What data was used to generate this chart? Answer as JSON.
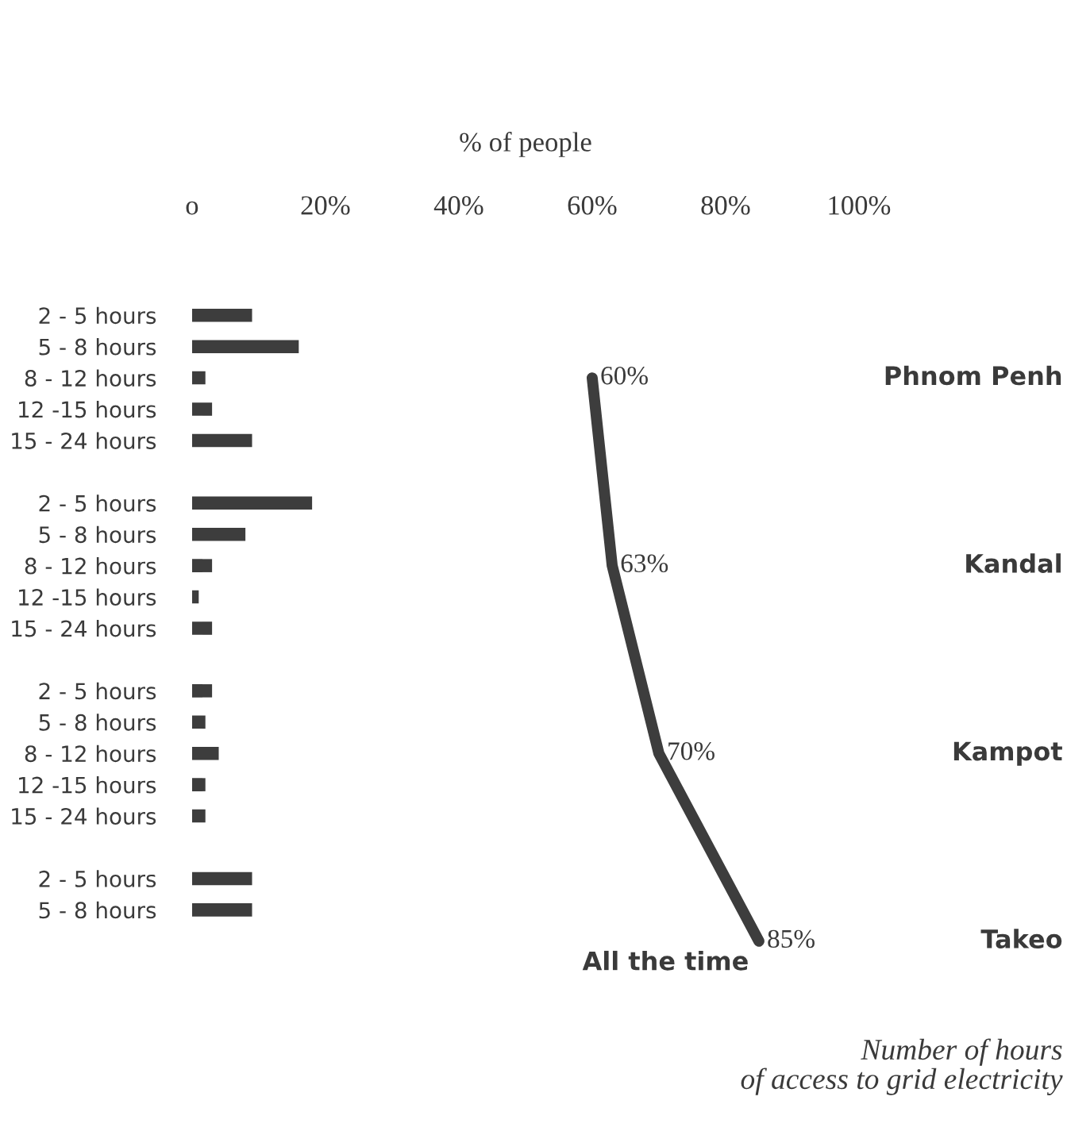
{
  "chart_data": {
    "type": "bar",
    "orientation": "horizontal",
    "xlabel": "% of people",
    "categories": [
      "2 - 5 hours",
      "5 - 8 hours",
      "8 - 12 hours",
      "12 -15 hours",
      "15 - 24 hours",
      null,
      "2 - 5 hours",
      "5 - 8 hours",
      "8 - 12 hours",
      "12 -15 hours",
      "15 - 24 hours",
      null,
      "2 - 5 hours",
      "5 - 8 hours",
      "8 - 12 hours",
      "12 -15 hours",
      "15 - 24 hours",
      null,
      "2 - 5 hours",
      "5 - 8 hours",
      null
    ],
    "series": [
      {
        "color": "#3d3d3d",
        "values": [
          9,
          16,
          2,
          3,
          9,
          null,
          18,
          8,
          3,
          1,
          3,
          null,
          3,
          2,
          4,
          2,
          2,
          null,
          9,
          9,
          null
        ]
      },
      {
        "type": "line",
        "name": "All the time",
        "color": "#3d3d3d",
        "values": [
          null,
          null,
          60,
          null,
          null,
          null,
          null,
          null,
          63,
          null,
          null,
          null,
          null,
          null,
          70,
          null,
          null,
          null,
          null,
          null,
          85
        ],
        "value_labels": [
          null,
          null,
          "60%",
          null,
          null,
          null,
          null,
          null,
          "63%",
          null,
          null,
          null,
          null,
          null,
          "70%",
          null,
          null,
          null,
          null,
          null,
          "85%"
        ]
      }
    ],
    "xlim": [
      0,
      100
    ],
    "xticks": [
      {
        "value": 0,
        "label": "o"
      },
      {
        "value": 20,
        "label": "20%"
      },
      {
        "value": 40,
        "label": "40%"
      },
      {
        "value": 60,
        "label": "60%"
      },
      {
        "value": 80,
        "label": "80%"
      },
      {
        "value": 100,
        "label": "100%"
      }
    ],
    "annotations": [
      "Phnom Penh",
      "Kandal",
      "Kampot",
      "Takeo",
      "Number of hours\nof access to grid electricity"
    ],
    "legend": false,
    "grid": false
  }
}
